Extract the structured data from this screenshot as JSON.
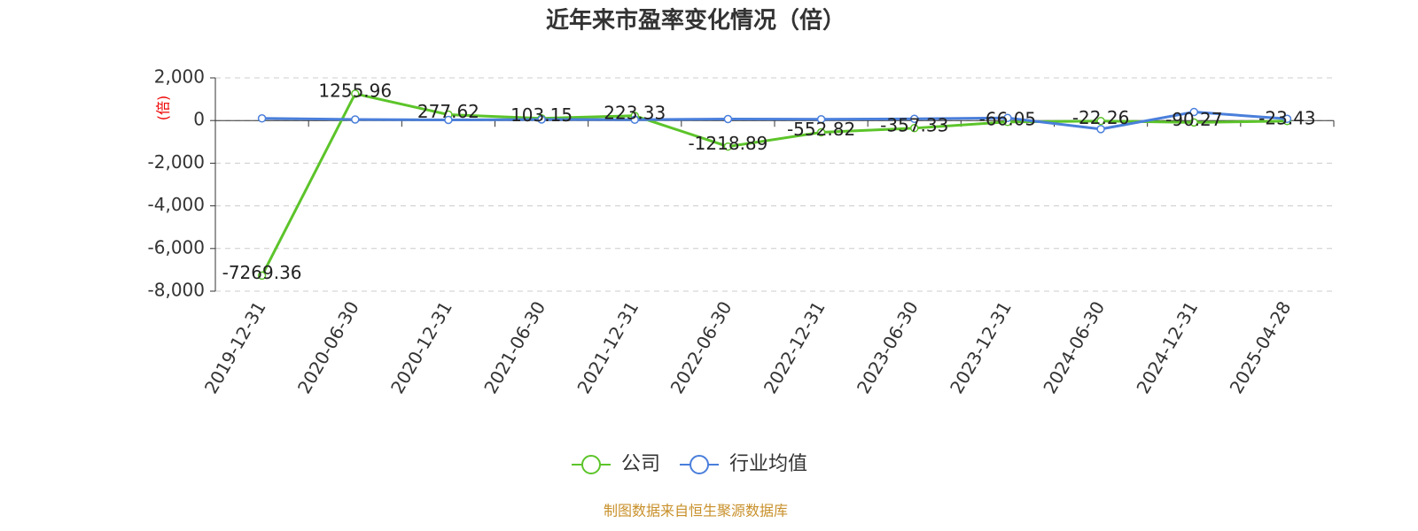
{
  "chart_data": {
    "type": "line",
    "title": "近年来市盈率变化情况（倍）",
    "y_label": "(倍)",
    "categories": [
      "2019-12-31",
      "2020-06-30",
      "2020-12-31",
      "2021-06-30",
      "2021-12-31",
      "2022-06-30",
      "2022-12-31",
      "2023-06-30",
      "2023-12-31",
      "2024-06-30",
      "2024-12-31",
      "2025-04-28"
    ],
    "series": [
      {
        "name": "公司",
        "color": "#5cc42a",
        "values": [
          -7269.36,
          1255.96,
          277.62,
          103.15,
          223.33,
          -1218.89,
          -552.82,
          -357.33,
          -66.05,
          -22.26,
          -90.27,
          -23.43
        ],
        "show_labels": true
      },
      {
        "name": "行业均值",
        "color": "#4a7fdb",
        "values": [
          100,
          50,
          30,
          50,
          40,
          70,
          60,
          80,
          120,
          -400,
          400,
          80
        ],
        "show_labels": false
      }
    ],
    "ylim": [
      -8000,
      2000
    ],
    "yticks": [
      {
        "value": 2000,
        "label": "2,000"
      },
      0,
      {
        "value": -2000,
        "label": "-2,000"
      },
      {
        "value": -4000,
        "label": "-4,000"
      },
      {
        "value": -6000,
        "label": "-6,000"
      },
      {
        "value": -8000,
        "label": "-8,000"
      }
    ],
    "grid": true,
    "source": "制图数据来自恒生聚源数据库"
  }
}
